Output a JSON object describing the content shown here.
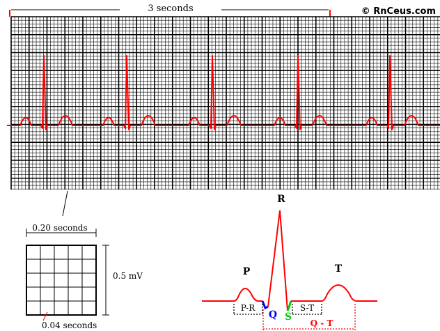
{
  "header": {
    "duration_label": "3 seconds",
    "copyright": "© RnCeus.com"
  },
  "strip": {
    "trace_color": "#ff0000",
    "grid_color": "#000000",
    "background": "#ffffff"
  },
  "box": {
    "width_label": "0.20 seconds",
    "height_label": "0.5 mV",
    "cell_label": "0.04 seconds"
  },
  "complex": {
    "labels": {
      "p": "P",
      "q": "Q",
      "r": "R",
      "s": "S",
      "t": "T"
    },
    "intervals": {
      "pr": "P-R",
      "st": "S-T",
      "qt": "Q - T"
    },
    "colors": {
      "trace": "#ff0000",
      "q": "#0000ff",
      "s": "#00cc00",
      "qt": "#ff0000"
    }
  }
}
